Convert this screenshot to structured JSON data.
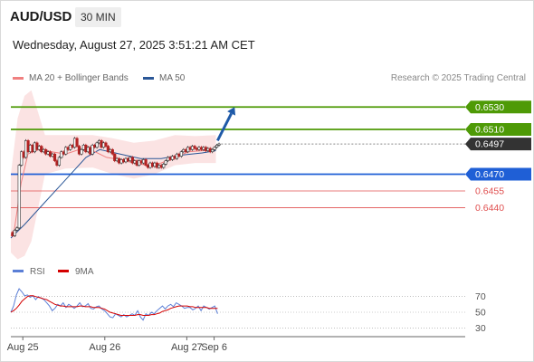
{
  "header": {
    "symbol": "AUD/USD",
    "timeframe": "30 MIN",
    "datetime": "Wednesday, August 27, 2025 3:51:21 AM CET"
  },
  "legend": {
    "items": [
      {
        "label": "MA 20 + Bollinger Bands",
        "color": "#f08080"
      },
      {
        "label": "MA 50",
        "color": "#2b5797"
      }
    ],
    "credit": "Research © 2025 Trading Central"
  },
  "rsi_legend": {
    "items": [
      {
        "label": "RSI",
        "color": "#5b7fd6"
      },
      {
        "label": "9MA",
        "color": "#d40000"
      }
    ]
  },
  "colors": {
    "resistance": "#4e9a06",
    "support": "#1f5fd6",
    "minor_support": "#e05050",
    "current": "#333333",
    "arrow": "#1f5aa8",
    "bollinger_fill": "#fbe3e3",
    "candle_up": "#2d2d2d",
    "candle_down": "#b22222"
  },
  "chart_data": {
    "type": "candlestick",
    "symbol": "AUD/USD",
    "interval": "30 MIN",
    "ylim": [
      0.6396,
      0.6548
    ],
    "x_axis": {
      "labels": [
        "Aug 25",
        "Aug 26",
        "Aug 27",
        "Sep 6"
      ],
      "range_hours": [
        0,
        266
      ],
      "label_hours": [
        7,
        55,
        103,
        119
      ]
    },
    "levels": [
      {
        "value": 0.653,
        "label": "0.6530",
        "kind": "resistance"
      },
      {
        "value": 0.651,
        "label": "0.6510",
        "kind": "resistance"
      },
      {
        "value": 0.6497,
        "label": "0.6497",
        "kind": "current"
      },
      {
        "value": 0.647,
        "label": "0.6470",
        "kind": "support"
      },
      {
        "value": 0.6455,
        "label": "0.6455",
        "kind": "minor_support"
      },
      {
        "value": 0.644,
        "label": "0.6440",
        "kind": "minor_support"
      }
    ],
    "arrow": {
      "from_hour": 121,
      "from_value": 0.65,
      "to_hour": 131,
      "to_value": 0.653
    },
    "rsi": {
      "ylim": [
        20,
        80
      ],
      "ticks": [
        70,
        50,
        30
      ],
      "rsi_values": [
        50,
        58,
        72,
        80,
        76,
        71,
        72,
        69,
        71,
        66,
        70,
        68,
        66,
        62,
        58,
        52,
        55,
        60,
        58,
        62,
        56,
        60,
        58,
        55,
        58,
        62,
        57,
        58,
        61,
        55,
        54,
        57,
        58,
        54,
        52,
        48,
        44,
        43,
        48,
        46,
        44,
        47,
        44,
        46,
        48,
        46,
        52,
        44,
        40,
        48,
        46,
        50,
        48,
        52,
        55,
        58,
        54,
        58,
        60,
        57,
        62,
        60,
        58,
        55,
        56,
        56,
        53,
        55,
        58,
        52,
        58,
        56,
        54,
        56,
        58,
        48
      ],
      "ma_values": [
        50,
        52,
        55,
        59,
        64,
        67,
        70,
        71,
        71,
        70,
        69,
        68,
        67,
        66,
        64,
        62,
        60,
        59,
        58,
        58,
        57,
        57,
        57,
        57,
        57,
        58,
        58,
        57,
        57,
        57,
        56,
        56,
        56,
        55,
        54,
        52,
        50,
        49,
        48,
        47,
        46,
        46,
        46,
        46,
        46,
        46,
        47,
        47,
        46,
        46,
        46,
        47,
        47,
        48,
        49,
        51,
        52,
        53,
        55,
        56,
        57,
        58,
        58,
        58,
        58,
        57,
        57,
        56,
        56,
        56,
        56,
        56,
        55,
        55,
        55,
        55
      ]
    },
    "price": {
      "ma20": [
        [
          0,
          0.6415
        ],
        [
          2,
          0.642
        ],
        [
          6,
          0.6462
        ],
        [
          10,
          0.6488
        ],
        [
          16,
          0.6492
        ],
        [
          24,
          0.649
        ],
        [
          32,
          0.6488
        ],
        [
          40,
          0.6492
        ],
        [
          48,
          0.6491
        ],
        [
          56,
          0.6485
        ],
        [
          64,
          0.6483
        ],
        [
          72,
          0.648
        ],
        [
          80,
          0.6478
        ],
        [
          88,
          0.648
        ],
        [
          96,
          0.6485
        ],
        [
          104,
          0.649
        ],
        [
          112,
          0.6491
        ],
        [
          120,
          0.6492
        ]
      ],
      "ma50": [
        [
          0,
          0.6413
        ],
        [
          8,
          0.6425
        ],
        [
          20,
          0.6445
        ],
        [
          32,
          0.6465
        ],
        [
          44,
          0.6485
        ],
        [
          52,
          0.6492
        ],
        [
          64,
          0.6488
        ],
        [
          76,
          0.6484
        ],
        [
          88,
          0.6484
        ],
        [
          100,
          0.6487
        ],
        [
          112,
          0.6489
        ],
        [
          120,
          0.6491
        ]
      ],
      "bb_upper": [
        [
          0,
          0.647
        ],
        [
          4,
          0.652
        ],
        [
          8,
          0.654
        ],
        [
          12,
          0.6545
        ],
        [
          16,
          0.6525
        ],
        [
          20,
          0.6505
        ],
        [
          32,
          0.6505
        ],
        [
          48,
          0.6505
        ],
        [
          60,
          0.6502
        ],
        [
          72,
          0.6498
        ],
        [
          84,
          0.65
        ],
        [
          96,
          0.6505
        ],
        [
          108,
          0.6504
        ],
        [
          120,
          0.6505
        ]
      ],
      "bb_lower": [
        [
          0,
          0.64
        ],
        [
          4,
          0.6394
        ],
        [
          8,
          0.6397
        ],
        [
          12,
          0.641
        ],
        [
          16,
          0.644
        ],
        [
          20,
          0.647
        ],
        [
          32,
          0.6475
        ],
        [
          48,
          0.6476
        ],
        [
          60,
          0.647
        ],
        [
          72,
          0.6466
        ],
        [
          84,
          0.647
        ],
        [
          96,
          0.6478
        ],
        [
          108,
          0.648
        ],
        [
          120,
          0.648
        ]
      ]
    },
    "candles": [
      [
        0,
        0.6418,
        0.6415
      ],
      [
        1,
        0.6415,
        0.642
      ],
      [
        2,
        0.642,
        0.6422
      ],
      [
        3,
        0.6422,
        0.6478
      ],
      [
        4,
        0.6478,
        0.649
      ],
      [
        5,
        0.649,
        0.6485
      ],
      [
        6,
        0.6485,
        0.65
      ],
      [
        7,
        0.65,
        0.649
      ],
      [
        8,
        0.649,
        0.6496
      ],
      [
        9,
        0.6496,
        0.649
      ],
      [
        10,
        0.649,
        0.6498
      ],
      [
        11,
        0.6498,
        0.6492
      ],
      [
        12,
        0.6492,
        0.6495
      ],
      [
        13,
        0.6495,
        0.649
      ],
      [
        14,
        0.649,
        0.6492
      ],
      [
        15,
        0.6492,
        0.6488
      ],
      [
        16,
        0.6488,
        0.649
      ],
      [
        17,
        0.649,
        0.6486
      ],
      [
        18,
        0.6486,
        0.6488
      ],
      [
        19,
        0.6488,
        0.6482
      ],
      [
        20,
        0.6482,
        0.6478
      ],
      [
        21,
        0.6478,
        0.6485
      ],
      [
        22,
        0.6485,
        0.649
      ],
      [
        23,
        0.649,
        0.6488
      ],
      [
        24,
        0.6488,
        0.6494
      ],
      [
        25,
        0.6494,
        0.6492
      ],
      [
        26,
        0.6492,
        0.6496
      ],
      [
        27,
        0.6496,
        0.6494
      ],
      [
        28,
        0.6494,
        0.6502
      ],
      [
        29,
        0.6502,
        0.6495
      ],
      [
        30,
        0.6495,
        0.6488
      ],
      [
        31,
        0.6488,
        0.6492
      ],
      [
        32,
        0.6492,
        0.6496
      ],
      [
        33,
        0.6496,
        0.649
      ],
      [
        34,
        0.649,
        0.6494
      ],
      [
        35,
        0.6494,
        0.6488
      ],
      [
        36,
        0.6488,
        0.6496
      ],
      [
        37,
        0.6496,
        0.6494
      ],
      [
        38,
        0.6494,
        0.6498
      ],
      [
        39,
        0.6498,
        0.65
      ],
      [
        40,
        0.65,
        0.6494
      ],
      [
        41,
        0.6494,
        0.6498
      ],
      [
        42,
        0.6498,
        0.6495
      ],
      [
        43,
        0.6495,
        0.649
      ],
      [
        44,
        0.649,
        0.6492
      ],
      [
        45,
        0.6492,
        0.6488
      ],
      [
        46,
        0.6488,
        0.6482
      ],
      [
        47,
        0.6482,
        0.6484
      ],
      [
        48,
        0.6484,
        0.648
      ],
      [
        49,
        0.648,
        0.6483
      ],
      [
        50,
        0.6483,
        0.6481
      ],
      [
        51,
        0.6481,
        0.6484
      ],
      [
        52,
        0.6484,
        0.6482
      ],
      [
        53,
        0.6482,
        0.6485
      ],
      [
        54,
        0.6485,
        0.648
      ],
      [
        55,
        0.648,
        0.6482
      ],
      [
        56,
        0.6482,
        0.6478
      ],
      [
        57,
        0.6478,
        0.6482
      ],
      [
        58,
        0.6482,
        0.648
      ],
      [
        59,
        0.648,
        0.6483
      ],
      [
        60,
        0.6483,
        0.6478
      ],
      [
        61,
        0.6478,
        0.6476
      ],
      [
        62,
        0.6476,
        0.648
      ],
      [
        63,
        0.648,
        0.6477
      ],
      [
        64,
        0.6477,
        0.648
      ],
      [
        65,
        0.648,
        0.6476
      ],
      [
        66,
        0.6476,
        0.6478
      ],
      [
        67,
        0.6478,
        0.6476
      ],
      [
        68,
        0.6476,
        0.6479
      ],
      [
        69,
        0.6479,
        0.6482
      ],
      [
        70,
        0.6482,
        0.6485
      ],
      [
        71,
        0.6485,
        0.6483
      ],
      [
        72,
        0.6483,
        0.6486
      ],
      [
        73,
        0.6486,
        0.6484
      ],
      [
        74,
        0.6484,
        0.6488
      ],
      [
        75,
        0.6488,
        0.6486
      ],
      [
        76,
        0.6486,
        0.649
      ],
      [
        77,
        0.649,
        0.6492
      ],
      [
        78,
        0.6492,
        0.649
      ],
      [
        79,
        0.649,
        0.6494
      ],
      [
        80,
        0.6494,
        0.6492
      ],
      [
        81,
        0.6492,
        0.6495
      ],
      [
        82,
        0.6495,
        0.6493
      ],
      [
        83,
        0.6493,
        0.6492
      ],
      [
        84,
        0.6492,
        0.6494
      ],
      [
        85,
        0.6494,
        0.6492
      ],
      [
        86,
        0.6492,
        0.6494
      ],
      [
        87,
        0.6494,
        0.6491
      ],
      [
        88,
        0.6491,
        0.6493
      ],
      [
        89,
        0.6493,
        0.649
      ],
      [
        90,
        0.649,
        0.6492
      ],
      [
        91,
        0.6492,
        0.6494
      ],
      [
        92,
        0.6494,
        0.6496
      ],
      [
        93,
        0.6496,
        0.6497
      ]
    ]
  }
}
